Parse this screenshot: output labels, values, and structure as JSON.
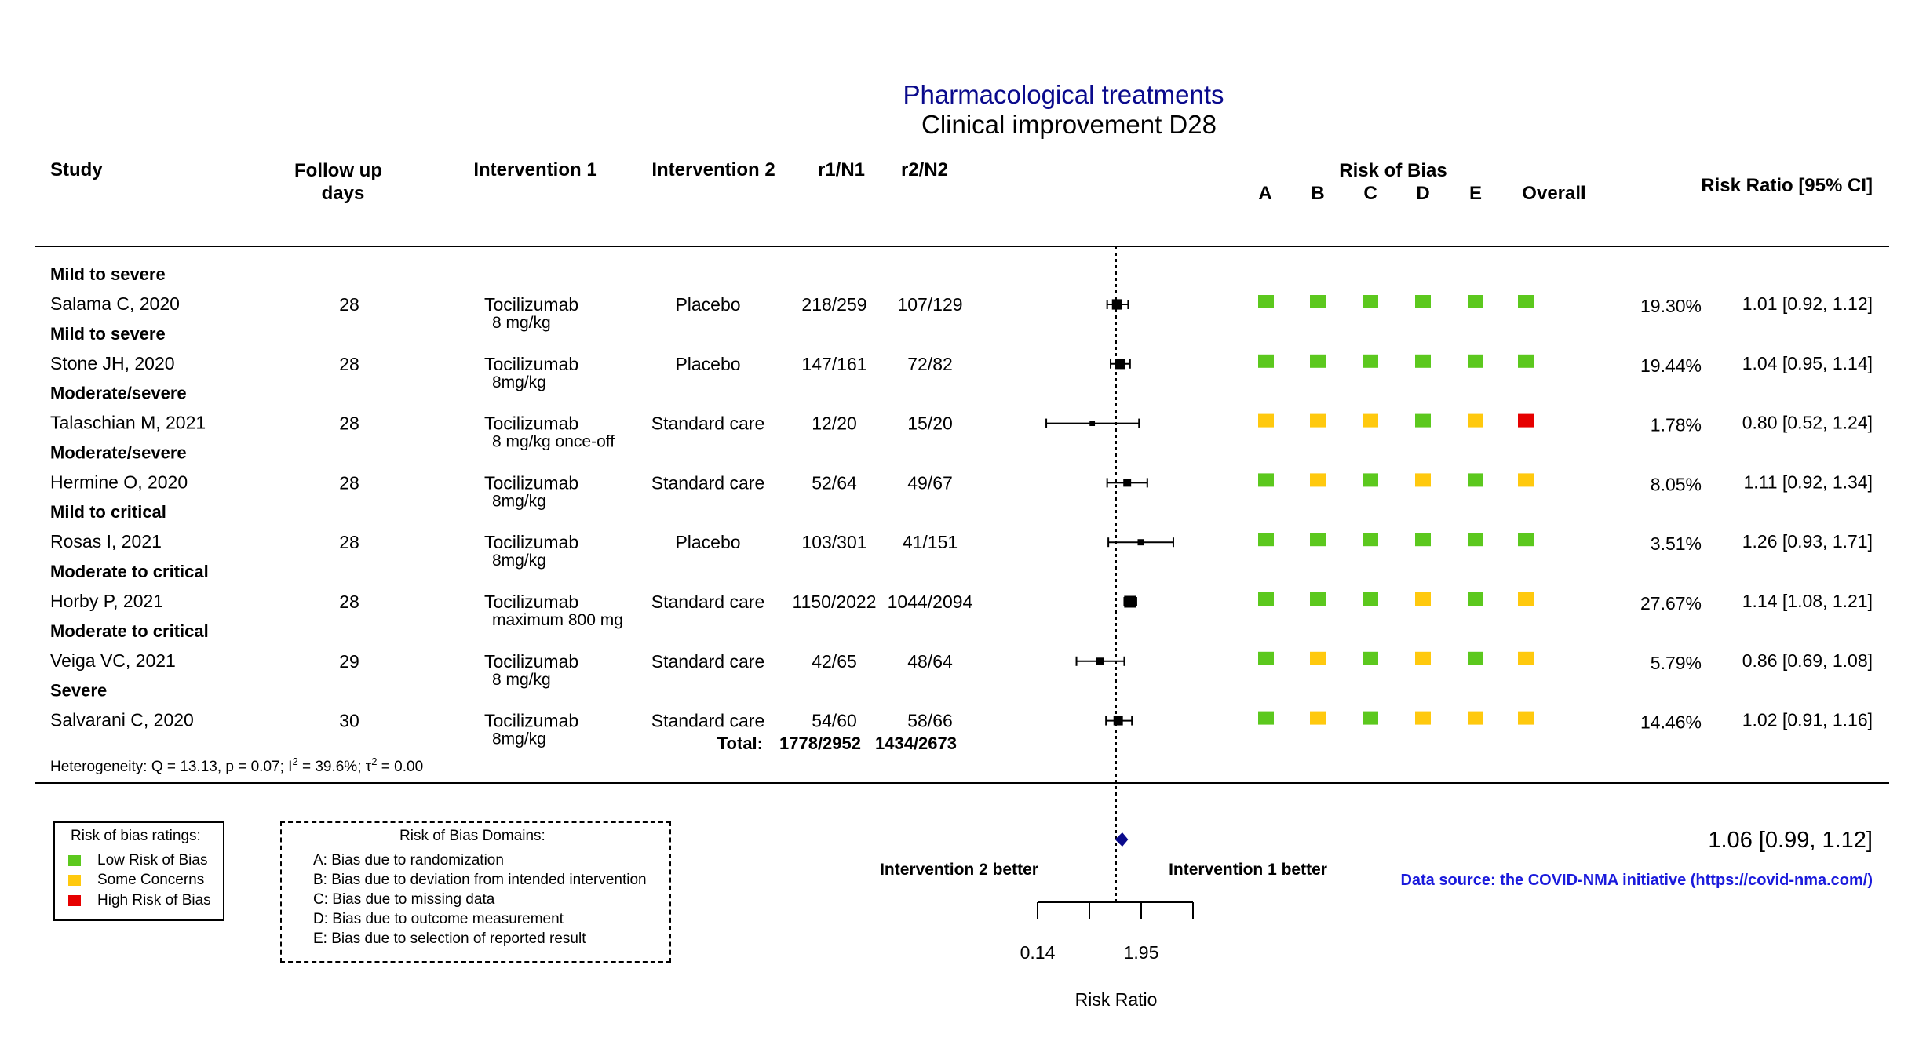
{
  "header": {
    "title": "Pharmacological treatments",
    "subtitle": "Clinical improvement D28",
    "col_study": "Study",
    "col_followup_1": "Follow up",
    "col_followup_2": "days",
    "col_int1": "Intervention 1",
    "col_int2": "Intervention 2",
    "col_r1n1": "r1/N1",
    "col_r2n2": "r2/N2",
    "col_rob": "Risk of Bias",
    "rob_cols": [
      "A",
      "B",
      "C",
      "D",
      "E",
      "Overall"
    ],
    "col_rr": "Risk Ratio [95% CI]"
  },
  "colors": {
    "title": "#0a0a8c",
    "low": "#5cc81e",
    "some": "#ffc90e",
    "high": "#e60000",
    "pooled": "#0a0a8c",
    "source": "#1a1adc"
  },
  "chart_data": {
    "type": "forest",
    "x_scale": "log",
    "xlim": [
      0.14,
      1.95
    ],
    "xticks_text": [
      "0.14",
      "1.95"
    ],
    "xlabel": "Risk Ratio",
    "reference_value": 1,
    "left_label": "Intervention 2 better",
    "right_label": "Intervention 1 better",
    "studies": [
      {
        "subgroup": "Mild to severe",
        "study": "Salama C, 2020",
        "followup": "28",
        "int1": "Tocilizumab",
        "dose": "8 mg/kg",
        "int2": "Placebo",
        "r1n1": "218/259",
        "r2n2": "107/129",
        "rob": [
          "low",
          "low",
          "low",
          "low",
          "low",
          "low"
        ],
        "weight": "19.30%",
        "rr": 1.01,
        "lo": 0.92,
        "hi": 1.12,
        "rr_text": "1.01 [0.92, 1.12]"
      },
      {
        "subgroup": "Mild to severe",
        "study": "Stone JH, 2020",
        "followup": "28",
        "int1": "Tocilizumab",
        "dose": "8mg/kg",
        "int2": "Placebo",
        "r1n1": "147/161",
        "r2n2": "72/82",
        "rob": [
          "low",
          "low",
          "low",
          "low",
          "low",
          "low"
        ],
        "weight": "19.44%",
        "rr": 1.04,
        "lo": 0.95,
        "hi": 1.14,
        "rr_text": "1.04 [0.95, 1.14]"
      },
      {
        "subgroup": "Moderate/severe",
        "study": "Talaschian M, 2021",
        "followup": "28",
        "int1": "Tocilizumab",
        "dose": "8 mg/kg once-off",
        "int2": "Standard care",
        "r1n1": "12/20",
        "r2n2": "15/20",
        "rob": [
          "some",
          "some",
          "some",
          "low",
          "some",
          "high"
        ],
        "weight": "1.78%",
        "rr": 0.8,
        "lo": 0.52,
        "hi": 1.24,
        "rr_text": "0.80 [0.52, 1.24]"
      },
      {
        "subgroup": "Moderate/severe",
        "study": "Hermine O, 2020",
        "followup": "28",
        "int1": "Tocilizumab",
        "dose": "8mg/kg",
        "int2": "Standard care",
        "r1n1": "52/64",
        "r2n2": "49/67",
        "rob": [
          "low",
          "some",
          "low",
          "some",
          "low",
          "some"
        ],
        "weight": "8.05%",
        "rr": 1.11,
        "lo": 0.92,
        "hi": 1.34,
        "rr_text": "1.11 [0.92, 1.34]"
      },
      {
        "subgroup": "Mild to critical",
        "study": "Rosas I, 2021",
        "followup": "28",
        "int1": "Tocilizumab",
        "dose": "8mg/kg",
        "int2": "Placebo",
        "r1n1": "103/301",
        "r2n2": "41/151",
        "rob": [
          "low",
          "low",
          "low",
          "low",
          "low",
          "low"
        ],
        "weight": "3.51%",
        "rr": 1.26,
        "lo": 0.93,
        "hi": 1.71,
        "rr_text": "1.26 [0.93, 1.71]"
      },
      {
        "subgroup": "Moderate to critical",
        "study": "Horby P, 2021",
        "followup": "28",
        "int1": "Tocilizumab",
        "dose": "maximum 800 mg",
        "int2": "Standard care",
        "r1n1": "1150/2022",
        "r2n2": "1044/2094",
        "rob": [
          "low",
          "low",
          "low",
          "some",
          "low",
          "some"
        ],
        "weight": "27.67%",
        "rr": 1.14,
        "lo": 1.08,
        "hi": 1.21,
        "rr_text": "1.14 [1.08, 1.21]"
      },
      {
        "subgroup": "Moderate to critical",
        "study": "Veiga VC, 2021",
        "followup": "29",
        "int1": "Tocilizumab",
        "dose": "8 mg/kg",
        "int2": "Standard care",
        "r1n1": "42/65",
        "r2n2": "48/64",
        "rob": [
          "low",
          "some",
          "low",
          "some",
          "low",
          "some"
        ],
        "weight": "5.79%",
        "rr": 0.86,
        "lo": 0.69,
        "hi": 1.08,
        "rr_text": "0.86 [0.69, 1.08]"
      },
      {
        "subgroup": "Severe",
        "study": "Salvarani C, 2020",
        "followup": "30",
        "int1": "Tocilizumab",
        "dose": "8mg/kg",
        "int2": "Standard care",
        "r1n1": "54/60",
        "r2n2": "58/66",
        "rob": [
          "low",
          "some",
          "low",
          "some",
          "some",
          "some"
        ],
        "weight": "14.46%",
        "rr": 1.02,
        "lo": 0.91,
        "hi": 1.16,
        "rr_text": "1.02 [0.91, 1.16]"
      }
    ],
    "total": {
      "label": "Total:",
      "r1n1": "1778/2952",
      "r2n2": "1434/2673"
    },
    "heterogeneity": {
      "prefix": "Heterogeneity: Q = 13.13, p = 0.07; I",
      "i2": "39.6%",
      "t2": "0.00"
    },
    "pooled": {
      "rr": 1.06,
      "lo": 0.99,
      "hi": 1.12,
      "text": "1.06 [0.99, 1.12]"
    }
  },
  "legend": {
    "title": "Risk of bias ratings:",
    "items": [
      {
        "label": "Low Risk of Bias",
        "color": "#5cc81e"
      },
      {
        "label": "Some Concerns",
        "color": "#ffc90e"
      },
      {
        "label": "High Risk of Bias",
        "color": "#e60000"
      }
    ]
  },
  "domains": {
    "title": "Risk of Bias Domains:",
    "items": [
      "A: Bias due to randomization",
      "B: Bias due to deviation from intended intervention",
      "C: Bias due to missing data",
      "D: Bias due to outcome measurement",
      "E: Bias due to selection of reported result"
    ]
  },
  "source": "Data source: the COVID-NMA initiative (https://covid-nma.com/)"
}
